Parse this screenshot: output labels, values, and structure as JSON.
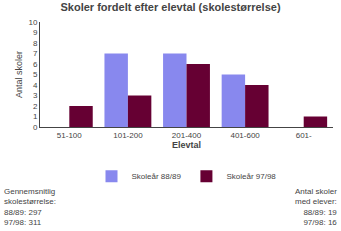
{
  "chart_data": {
    "type": "bar",
    "title": "Skoler fordelt efter elevtal (skolestørrelse)",
    "xlabel": "Elevtal",
    "ylabel": "Antal skoler",
    "categories": [
      "51-100",
      "101-200",
      "201-400",
      "401-600",
      "601-"
    ],
    "series": [
      {
        "name": "Skoleår 88/89",
        "color": "#8888ee",
        "values": [
          0,
          7,
          7,
          5,
          0
        ]
      },
      {
        "name": "Skoleår 97/98",
        "color": "#660033",
        "values": [
          2,
          3,
          6,
          4,
          1
        ]
      }
    ],
    "ylim": [
      0,
      10
    ],
    "yticks": [
      0,
      1,
      2,
      3,
      4,
      5,
      6,
      7,
      8,
      9,
      10
    ],
    "grid": false,
    "legend": "bottom",
    "annotations": [
      "Gennemsnitlig\nskolestørrelse:\n88/89: 297\n97/98: 311",
      "Antal skoler\nmed elever:\n88/89: 19\n97/98: 16"
    ]
  }
}
